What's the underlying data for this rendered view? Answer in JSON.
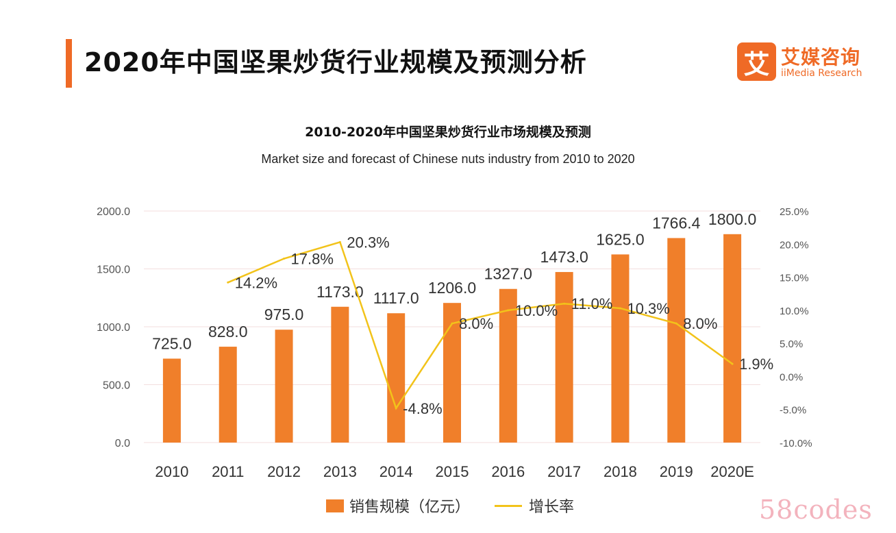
{
  "header": {
    "title": "2020年中国坚果炒货行业规模及预测分析",
    "accent_color": "#ef6a26"
  },
  "brand": {
    "mark": "艾",
    "name": "艾媒咨询",
    "sub": "iiMedia Research"
  },
  "chart_data": {
    "type": "bar",
    "title": "2010-2020年中国坚果炒货行业市场规模及预测",
    "subtitle": "Market size and forecast of Chinese nuts industry  from 2010 to 2020",
    "categories": [
      "2010",
      "2011",
      "2012",
      "2013",
      "2014",
      "2015",
      "2016",
      "2017",
      "2018",
      "2019",
      "2020E"
    ],
    "series": [
      {
        "name": "销售规模（亿元）",
        "type": "bar",
        "axis": "left",
        "color": "#f07f2a",
        "values": [
          725.0,
          828.0,
          975.0,
          1173.0,
          1117.0,
          1206.0,
          1327.0,
          1473.0,
          1625.0,
          1766.4,
          1800.0
        ],
        "labels": [
          "725.0",
          "828.0",
          "975.0",
          "1173.0",
          "1117.0",
          "1206.0",
          "1327.0",
          "1473.0",
          "1625.0",
          "1766.4",
          "1800.0"
        ]
      },
      {
        "name": "增长率",
        "type": "line",
        "axis": "right",
        "color": "#f2c31a",
        "values": [
          null,
          14.2,
          17.8,
          20.3,
          -4.8,
          8.0,
          10.0,
          11.0,
          10.3,
          8.0,
          1.9
        ],
        "labels": [
          "",
          "14.2%",
          "17.8%",
          "20.3%",
          "-4.8%",
          "8.0%",
          "10.0%",
          "11.0%",
          "10.3%",
          "8.0%",
          "1.9%"
        ]
      }
    ],
    "y_left": {
      "range": [
        0,
        2000
      ],
      "ticks": [
        "0.0",
        "500.0",
        "1000.0",
        "1500.0",
        "2000.0"
      ]
    },
    "y_right": {
      "range": [
        -10,
        25
      ],
      "ticks": [
        "-10.0%",
        "-5.0%",
        "0.0%",
        "5.0%",
        "10.0%",
        "15.0%",
        "20.0%",
        "25.0%"
      ]
    },
    "grid": true,
    "legend_position": "bottom"
  },
  "watermark": "58codes"
}
